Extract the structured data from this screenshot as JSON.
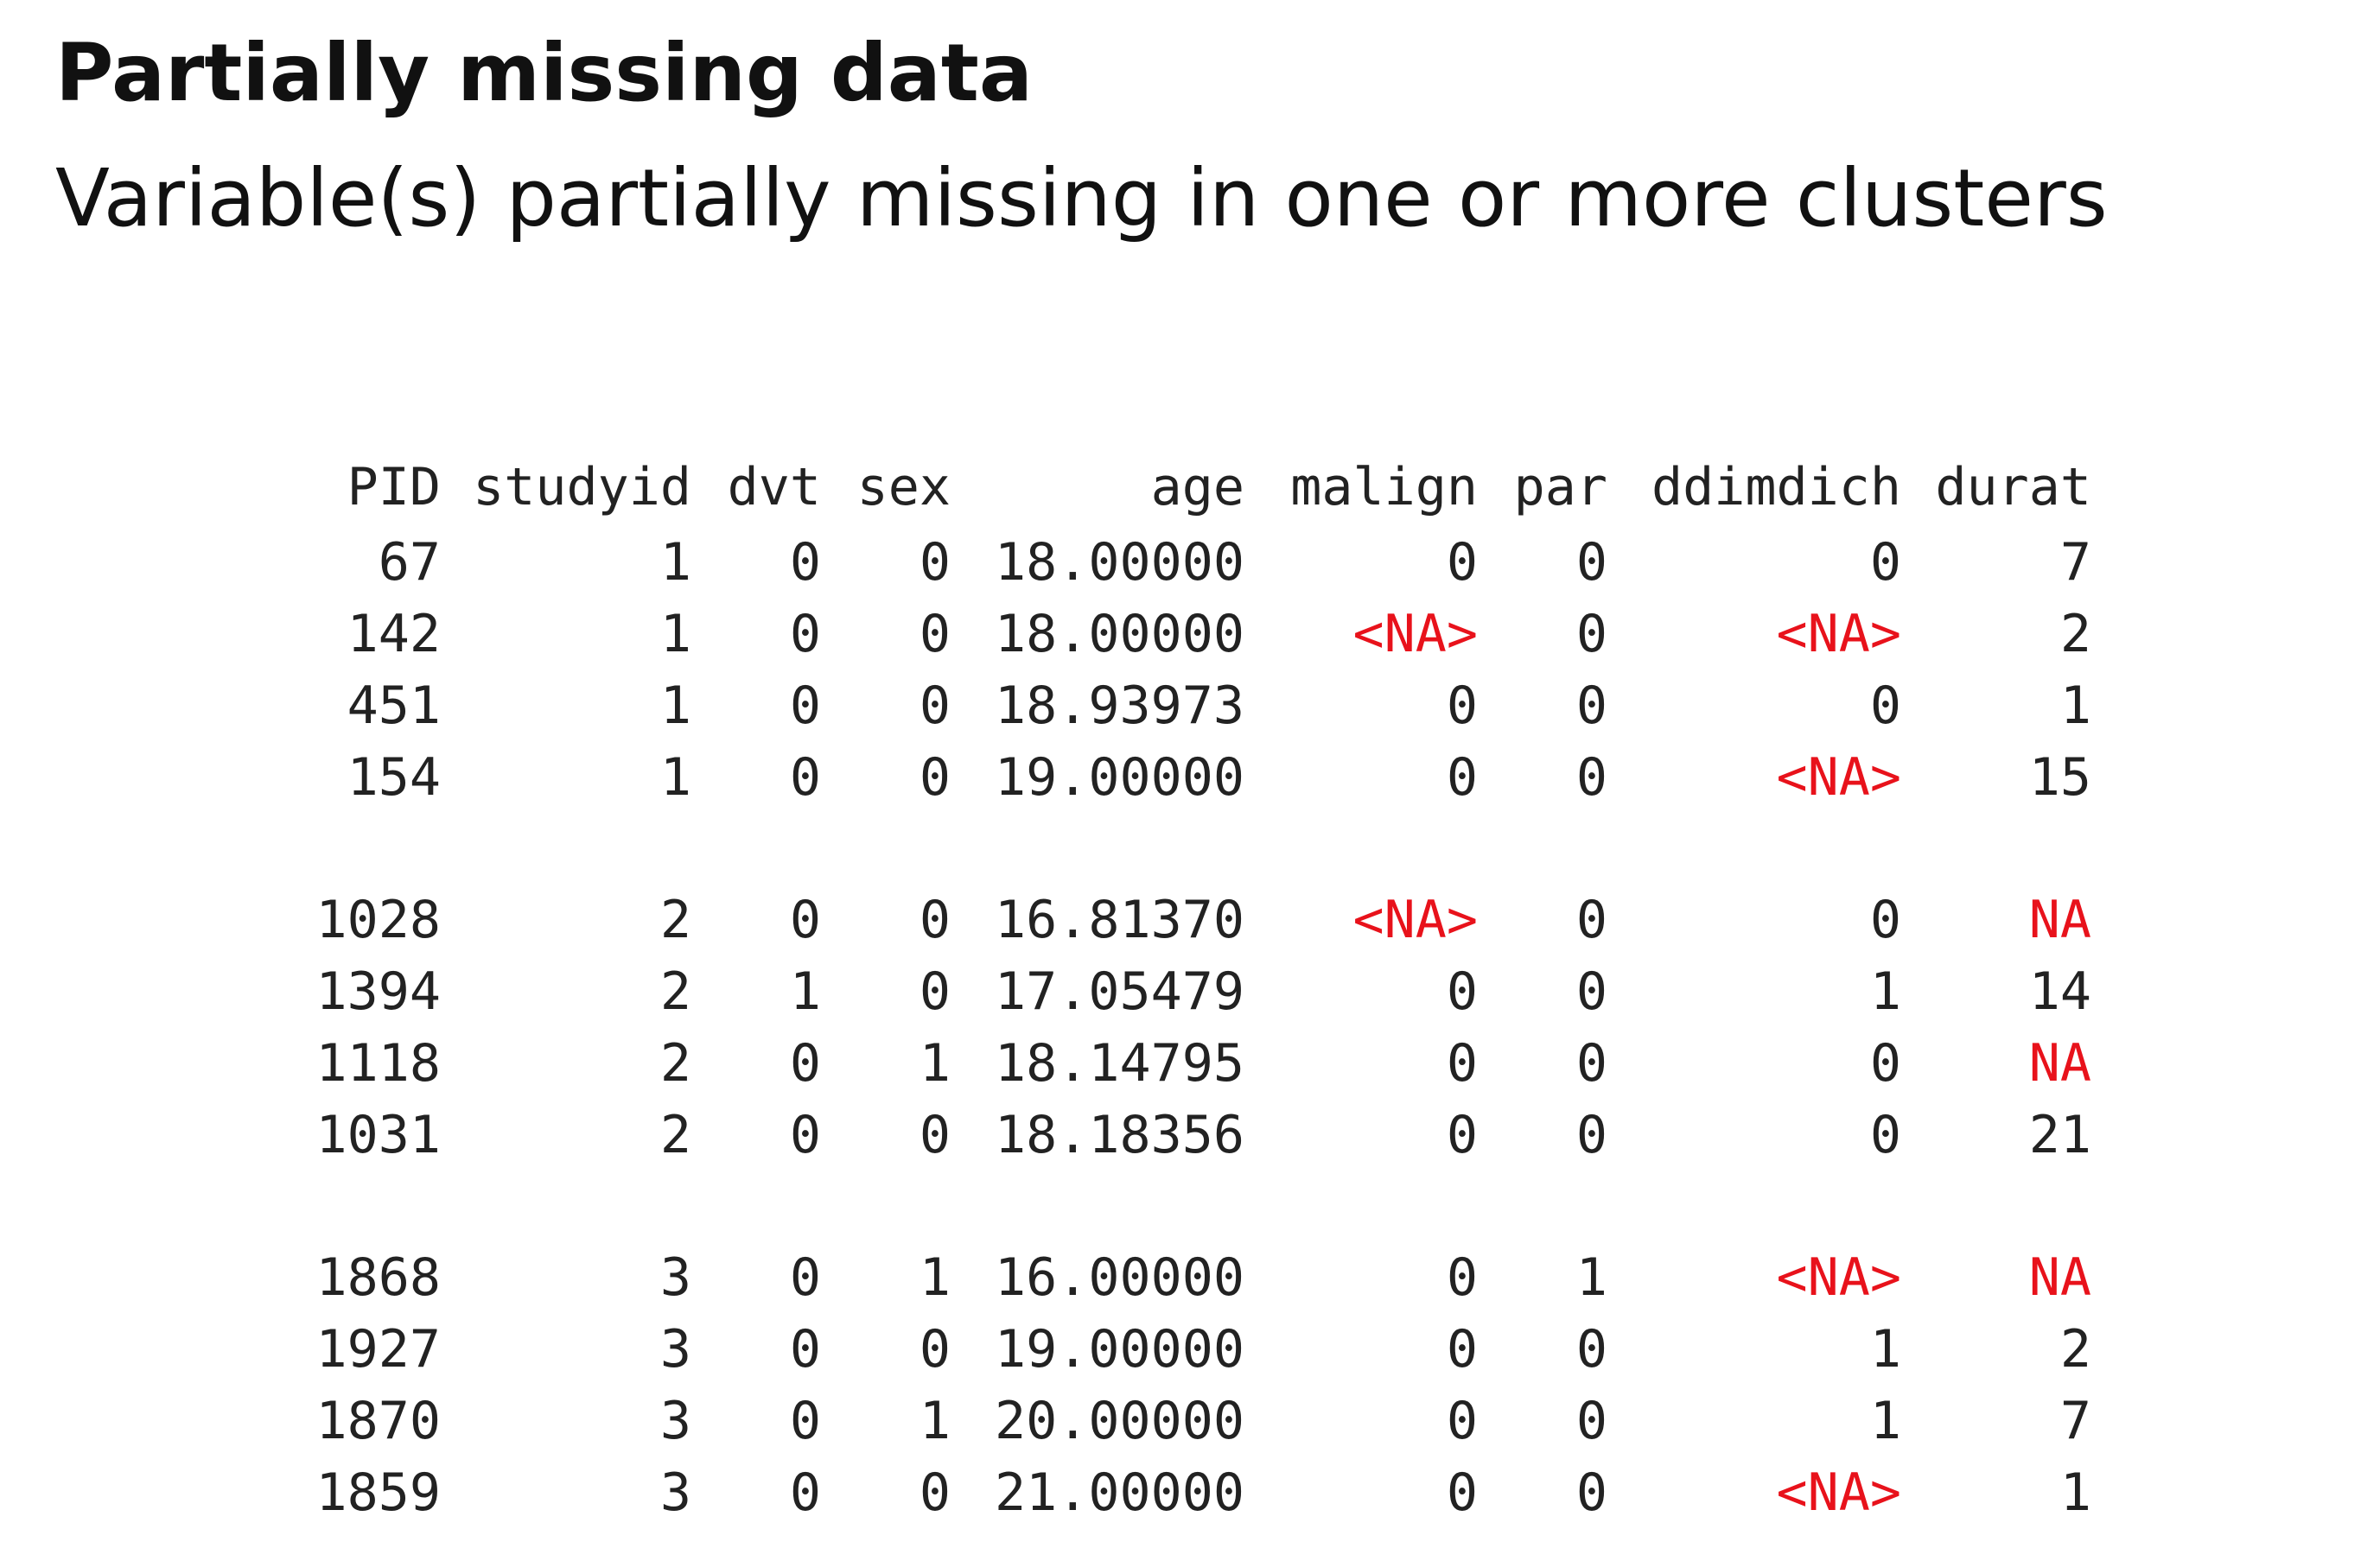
{
  "slide": {
    "title": "Partially missing data",
    "subtitle": "Variable(s) partially missing in one or more clusters"
  },
  "table": {
    "columns": [
      "PID",
      "studyid",
      "dvt",
      "sex",
      "age",
      "malign",
      "par",
      "ddimdich",
      "durat"
    ],
    "na_color": "#e8121b",
    "groups": [
      [
        [
          "67",
          "1",
          "0",
          "0",
          "18.00000",
          "0",
          "0",
          "0",
          "7"
        ],
        [
          "142",
          "1",
          "0",
          "0",
          "18.00000",
          "<NA>",
          "0",
          "<NA>",
          "2"
        ],
        [
          "451",
          "1",
          "0",
          "0",
          "18.93973",
          "0",
          "0",
          "0",
          "1"
        ],
        [
          "154",
          "1",
          "0",
          "0",
          "19.00000",
          "0",
          "0",
          "<NA>",
          "15"
        ]
      ],
      [
        [
          "1028",
          "2",
          "0",
          "0",
          "16.81370",
          "<NA>",
          "0",
          "0",
          "NA"
        ],
        [
          "1394",
          "2",
          "1",
          "0",
          "17.05479",
          "0",
          "0",
          "1",
          "14"
        ],
        [
          "1118",
          "2",
          "0",
          "1",
          "18.14795",
          "0",
          "0",
          "0",
          "NA"
        ],
        [
          "1031",
          "2",
          "0",
          "0",
          "18.18356",
          "0",
          "0",
          "0",
          "21"
        ]
      ],
      [
        [
          "1868",
          "3",
          "0",
          "1",
          "16.00000",
          "0",
          "1",
          "<NA>",
          "NA"
        ],
        [
          "1927",
          "3",
          "0",
          "0",
          "19.00000",
          "0",
          "0",
          "1",
          "2"
        ],
        [
          "1870",
          "3",
          "0",
          "1",
          "20.00000",
          "0",
          "0",
          "1",
          "7"
        ],
        [
          "1859",
          "3",
          "0",
          "0",
          "21.00000",
          "0",
          "0",
          "<NA>",
          "1"
        ]
      ]
    ]
  }
}
